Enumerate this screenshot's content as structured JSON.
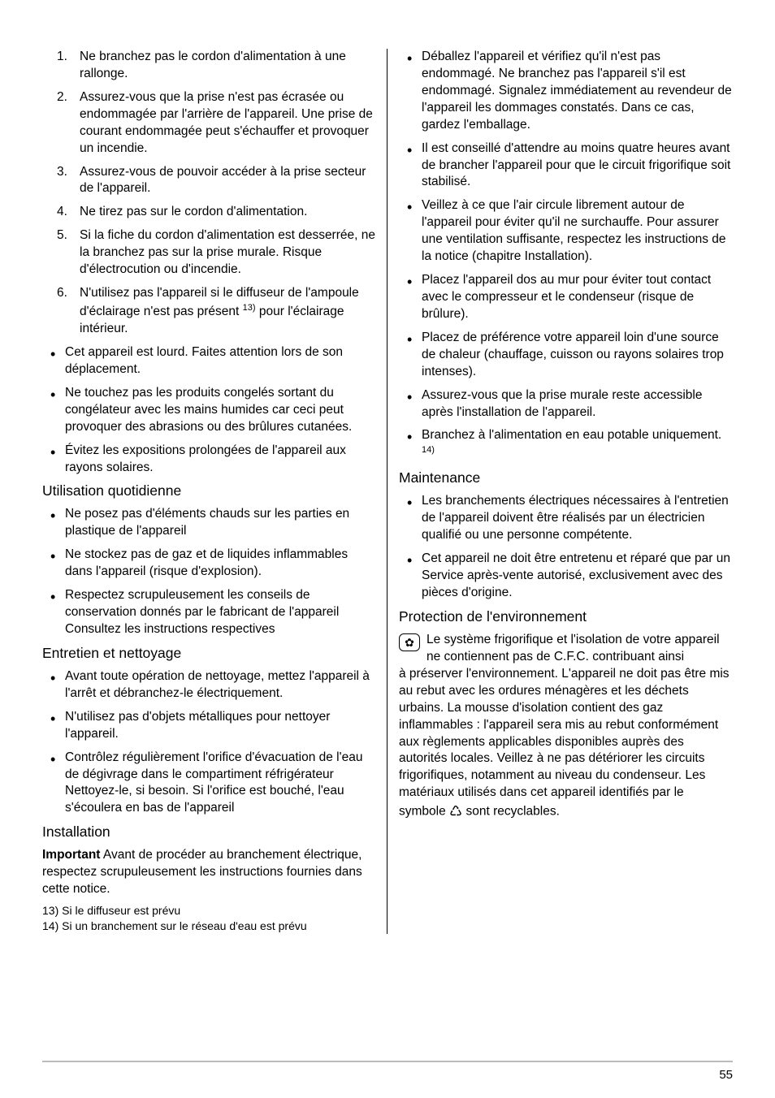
{
  "left": {
    "numbered": [
      "Ne branchez pas le cordon d'alimentation à une rallonge.",
      "Assurez-vous que la prise n'est pas écrasée ou endommagée par l'arrière de l'appareil. Une prise de courant endommagée peut s'échauffer et provoquer un incendie.",
      "Assurez-vous de pouvoir accéder à la prise secteur de l'appareil.",
      "Ne tirez pas sur le cordon d'alimentation.",
      "Si la fiche du cordon d'alimentation est desserrée, ne la branchez pas sur la prise murale. Risque d'électrocution ou d'incendie.",
      "N'utilisez pas l'appareil si le diffuseur de l'ampoule d'éclairage n'est pas présent 13) pour l'éclairage intérieur."
    ],
    "afterNumbered": [
      "Cet appareil est lourd. Faites attention lors de son déplacement.",
      "Ne touchez pas les produits congelés sortant du congélateur avec les mains humides car ceci peut provoquer des abrasions ou des brûlures cutanées.",
      "Évitez les expositions prolongées de l'appareil aux rayons solaires."
    ],
    "h_quot": "Utilisation quotidienne",
    "quot": [
      "Ne posez pas d'éléments chauds sur les parties en plastique de l'appareil",
      "Ne stockez pas de gaz et de liquides inflammables dans l'appareil (risque d'explosion).",
      "Respectez scrupuleusement les conseils de conservation donnés par le fabricant de l'appareil Consultez les instructions respectives"
    ],
    "h_entretien": "Entretien et nettoyage",
    "entretien": [
      "Avant toute opération de nettoyage, mettez l'appareil à l'arrêt et débranchez-le électriquement.",
      "N'utilisez pas d'objets métalliques pour nettoyer l'appareil.",
      "Contrôlez régulièrement l'orifice d'évacuation de l'eau de dégivrage dans le compartiment réfrigérateur Nettoyez-le, si besoin. Si l'orifice est bouché, l'eau s'écoulera en bas de l'appareil"
    ],
    "h_install": "Installation",
    "important_label": "Important",
    "important_text": "Avant de procéder au branchement électrique, respectez scrupuleusement les instructions fournies dans cette notice.",
    "fn13": "13) Si le diffuseur est prévu",
    "fn14": "14) Si un branchement sur le réseau d'eau est prévu"
  },
  "right": {
    "install": [
      "Déballez l'appareil et vérifiez qu'il n'est pas endommagé. Ne branchez pas l'appareil s'il est endommagé. Signalez immédiatement au revendeur de l'appareil les dommages constatés. Dans ce cas, gardez l'emballage.",
      "Il est conseillé d'attendre au moins quatre heures avant de brancher l'appareil pour que le circuit frigorifique soit stabilisé.",
      "Veillez à ce que l'air circule librement autour de l'appareil pour éviter qu'il ne surchauffe. Pour assurer une ventilation suffisante, respectez les instructions de la notice (chapitre Installation).",
      "Placez l'appareil dos au mur pour éviter tout contact avec le compresseur et le condenseur (risque de brûlure).",
      "Placez de préférence votre appareil loin d'une source de chaleur (chauffage, cuisson ou rayons solaires trop intenses).",
      "Assurez-vous que la prise murale reste accessible après l'installation de l'appareil.",
      "Branchez à l'alimentation en eau potable uniquement. 14)"
    ],
    "h_maint": "Maintenance",
    "maint": [
      "Les branchements électriques nécessaires à l'entretien de l'appareil doivent être réalisés par un électricien qualifié ou une personne compétente.",
      "Cet appareil ne doit être entretenu et réparé que par un Service après-vente autorisé, exclusivement avec des pièces d'origine."
    ],
    "h_env": "Protection de l'environnement",
    "env_first": "Le système frigorifique et l'isolation de votre appareil ne contiennent pas de C.F.C. contribuant ainsi",
    "env_rest": "à préserver l'environnement. L'appareil ne doit pas être mis au rebut avec les ordures ménagères et les déchets urbains. La mousse d'isolation contient des gaz inflammables : l'appareil sera mis au rebut conformément aux règlements applicables disponibles auprès des autorités locales. Veillez à ne pas détériorer les circuits frigorifiques, notamment au niveau du condenseur. Les matériaux utilisés dans cet appareil identifiés par le symbole ",
    "env_tail": " sont recyclables."
  },
  "pageNumber": "55"
}
